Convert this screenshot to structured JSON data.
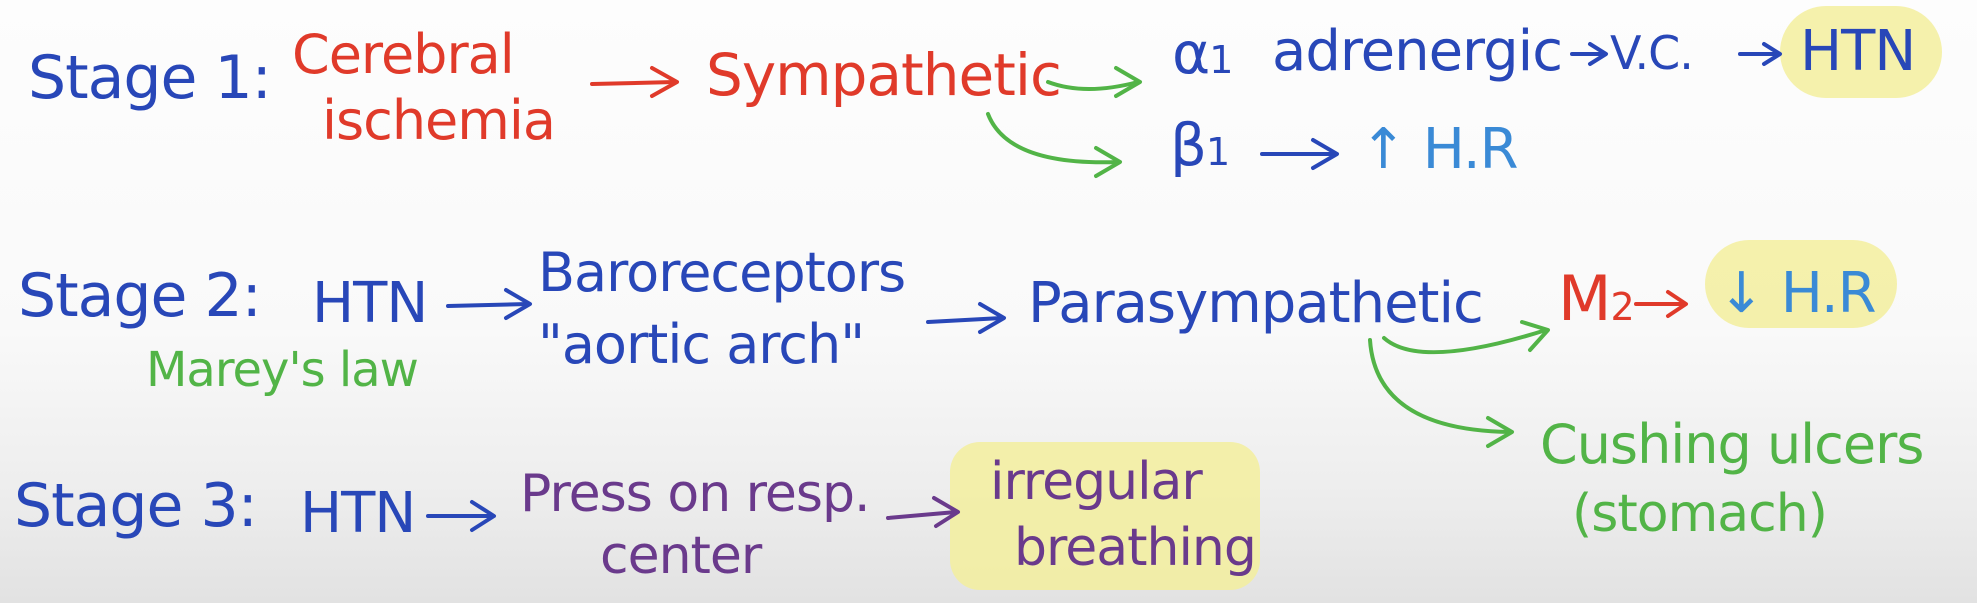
{
  "colors": {
    "stage_text": "#2847b8",
    "cause_text": "#e03a2a",
    "branch_arrow": "#52b447",
    "pressure_text": "#6a3a8c",
    "heart_rate_text": "#3a8ad6",
    "highlight": "#f3ee9e"
  },
  "stage1": {
    "label": "Stage 1:",
    "cause_line1": "Cerebral",
    "cause_line2": "ischemia",
    "effector": "Sympathetic",
    "alpha_symbol": "α",
    "alpha_sub": "1",
    "alpha_text": "adrenergic",
    "vc": "V.C.",
    "result": "HTN",
    "beta_symbol": "β",
    "beta_sub": "1",
    "hr": "↑ H.R"
  },
  "stage2": {
    "label": "Stage 2:",
    "cause": "HTN",
    "law": "Marey's law",
    "receptor_line1": "Baroreceptors",
    "receptor_line2": "\"aortic arch\"",
    "effector": "Parasympathetic",
    "m_symbol": "M",
    "m_sub": "2",
    "hr": "↓ H.R",
    "ulcer_line1": "Cushing ulcers",
    "ulcer_line2": "(stomach)"
  },
  "stage3": {
    "label": "Stage 3:",
    "cause": "HTN",
    "pressure_line1": "Press on resp.",
    "pressure_line2": "center",
    "result_line1": "irregular",
    "result_line2": "breathing"
  }
}
